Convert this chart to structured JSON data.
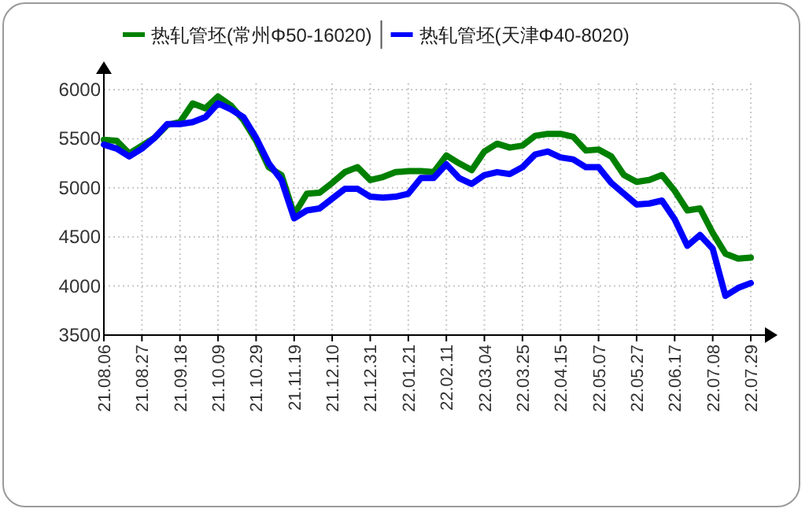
{
  "chart_data": {
    "type": "line",
    "categories": [
      "21.08.06",
      null,
      null,
      "21.08.27",
      null,
      null,
      "21.09.18",
      null,
      null,
      "21.10.09",
      null,
      null,
      "21.10.29",
      null,
      null,
      "21.11.19",
      null,
      null,
      "21.12.10",
      null,
      null,
      "21.12.31",
      null,
      null,
      "22.01.21",
      null,
      null,
      "22.02.11",
      null,
      null,
      "22.03.04",
      null,
      null,
      "22.03.25",
      null,
      null,
      "22.04.15",
      null,
      null,
      "22.05.07",
      null,
      null,
      "22.05.27",
      null,
      null,
      "22.06.17",
      null,
      null,
      "22.07.08",
      null,
      null,
      "22.07.29"
    ],
    "series": [
      {
        "name": "热轧管坯(常州Φ50-16020)",
        "color": "#008000",
        "values": [
          5490,
          5480,
          5350,
          5430,
          5510,
          5640,
          5670,
          5860,
          5810,
          5930,
          5840,
          5690,
          5480,
          5210,
          5130,
          4730,
          4940,
          4950,
          5050,
          5160,
          5210,
          5080,
          5110,
          5160,
          5170,
          5170,
          5160,
          5330,
          5250,
          5180,
          5370,
          5450,
          5410,
          5430,
          5530,
          5550,
          5550,
          5520,
          5380,
          5390,
          5320,
          5130,
          5060,
          5080,
          5130,
          4970,
          4770,
          4790,
          4540,
          4330,
          4280,
          4290
        ]
      },
      {
        "name": "热轧管坯(天津Φ40-8020)",
        "color": "#0000ff",
        "values": [
          5440,
          5400,
          5320,
          5400,
          5510,
          5650,
          5650,
          5670,
          5720,
          5860,
          5800,
          5720,
          5510,
          5250,
          5080,
          4690,
          4770,
          4790,
          4890,
          4990,
          4990,
          4910,
          4900,
          4910,
          4940,
          5100,
          5100,
          5240,
          5100,
          5040,
          5130,
          5160,
          5140,
          5210,
          5340,
          5370,
          5310,
          5290,
          5210,
          5210,
          5050,
          4940,
          4830,
          4840,
          4870,
          4680,
          4410,
          4520,
          4380,
          3900,
          3980,
          4030
        ]
      }
    ],
    "ylim": [
      3500,
      6000
    ],
    "yticks": [
      3500,
      4000,
      4500,
      5000,
      5500,
      6000
    ],
    "grid": true,
    "legend": "top",
    "marker": "none",
    "line_style": "solid"
  }
}
